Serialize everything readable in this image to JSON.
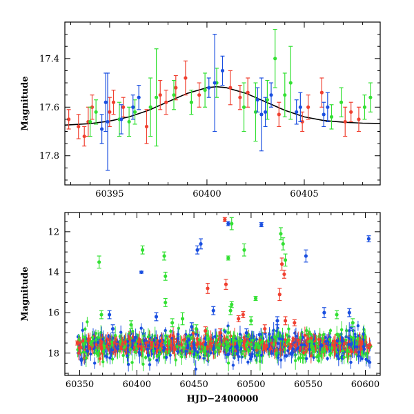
{
  "chart_data": [
    {
      "type": "scatter",
      "title": "",
      "xlabel": "",
      "ylabel": "Magnitude",
      "xlim": [
        60392.7,
        60408.9
      ],
      "ylim": [
        17.92,
        17.25
      ],
      "y_inverted": true,
      "grid": false,
      "x_ticks": [
        60395,
        60400,
        60405
      ],
      "x_tick_labels": [
        "60395",
        "60400",
        "60405"
      ],
      "y_ticks": [
        17.4,
        17.6,
        17.8
      ],
      "y_tick_labels": [
        "17.4",
        "17.6",
        "17.8"
      ],
      "colors": {
        "red": "#f04030",
        "green": "#33e033",
        "blue": "#1a4fe0",
        "model": "#000000"
      },
      "model_curve": {
        "name": "",
        "x": [
          60392.7,
          60394,
          60395,
          60396,
          60397,
          60398,
          60399,
          60400,
          60400.5,
          60401,
          60402,
          60403,
          60404,
          60405,
          60406,
          60407,
          60408,
          60408.9
        ],
        "y": [
          17.674,
          17.668,
          17.657,
          17.64,
          17.613,
          17.578,
          17.543,
          17.52,
          17.516,
          17.52,
          17.543,
          17.578,
          17.613,
          17.64,
          17.655,
          17.662,
          17.666,
          17.667
        ]
      },
      "series": [
        {
          "name": "",
          "color": "red",
          "points": [
            {
              "x": 60392.9,
              "y": 17.65,
              "e": 0.04
            },
            {
              "x": 60393.4,
              "y": 17.68,
              "e": 0.05
            },
            {
              "x": 60393.7,
              "y": 17.72,
              "e": 0.04
            },
            {
              "x": 60393.9,
              "y": 17.66,
              "e": 0.06
            },
            {
              "x": 60394.1,
              "y": 17.6,
              "e": 0.05
            },
            {
              "x": 60395.0,
              "y": 17.62,
              "e": 0.06
            },
            {
              "x": 60395.2,
              "y": 17.58,
              "e": 0.05
            },
            {
              "x": 60395.7,
              "y": 17.6,
              "e": 0.04
            },
            {
              "x": 60396.9,
              "y": 17.68,
              "e": 0.07
            },
            {
              "x": 60397.6,
              "y": 17.55,
              "e": 0.06
            },
            {
              "x": 60397.9,
              "y": 17.58,
              "e": 0.05
            },
            {
              "x": 60398.4,
              "y": 17.52,
              "e": 0.05
            },
            {
              "x": 60398.9,
              "y": 17.48,
              "e": 0.07
            },
            {
              "x": 60399.6,
              "y": 17.55,
              "e": 0.05
            },
            {
              "x": 60401.2,
              "y": 17.52,
              "e": 0.07
            },
            {
              "x": 60401.7,
              "y": 17.56,
              "e": 0.05
            },
            {
              "x": 60402.1,
              "y": 17.54,
              "e": 0.06
            },
            {
              "x": 60403.7,
              "y": 17.63,
              "e": 0.05
            },
            {
              "x": 60404.9,
              "y": 17.66,
              "e": 0.04
            },
            {
              "x": 60405.2,
              "y": 17.6,
              "e": 0.05
            },
            {
              "x": 60405.9,
              "y": 17.54,
              "e": 0.06
            },
            {
              "x": 60407.1,
              "y": 17.66,
              "e": 0.06
            },
            {
              "x": 60407.4,
              "y": 17.62,
              "e": 0.04
            },
            {
              "x": 60407.8,
              "y": 17.65,
              "e": 0.05
            }
          ]
        },
        {
          "name": "",
          "color": "green",
          "points": [
            {
              "x": 60394.0,
              "y": 17.66,
              "e": 0.06
            },
            {
              "x": 60394.3,
              "y": 17.62,
              "e": 0.05
            },
            {
              "x": 60395.5,
              "y": 17.65,
              "e": 0.07
            },
            {
              "x": 60396.0,
              "y": 17.66,
              "e": 0.06
            },
            {
              "x": 60396.3,
              "y": 17.62,
              "e": 0.05
            },
            {
              "x": 60397.1,
              "y": 17.6,
              "e": 0.12
            },
            {
              "x": 60397.4,
              "y": 17.56,
              "e": 0.2
            },
            {
              "x": 60398.3,
              "y": 17.55,
              "e": 0.06
            },
            {
              "x": 60399.2,
              "y": 17.58,
              "e": 0.05
            },
            {
              "x": 60399.9,
              "y": 17.53,
              "e": 0.07
            },
            {
              "x": 60400.5,
              "y": 17.5,
              "e": 0.06
            },
            {
              "x": 60401.9,
              "y": 17.6,
              "e": 0.1
            },
            {
              "x": 60402.5,
              "y": 17.62,
              "e": 0.12
            },
            {
              "x": 60403.1,
              "y": 17.57,
              "e": 0.08
            },
            {
              "x": 60403.5,
              "y": 17.4,
              "e": 0.12
            },
            {
              "x": 60404.0,
              "y": 17.55,
              "e": 0.09
            },
            {
              "x": 60404.3,
              "y": 17.5,
              "e": 0.15
            },
            {
              "x": 60406.4,
              "y": 17.64,
              "e": 0.05
            },
            {
              "x": 60406.9,
              "y": 17.58,
              "e": 0.06
            },
            {
              "x": 60408.1,
              "y": 17.6,
              "e": 0.05
            },
            {
              "x": 60408.4,
              "y": 17.56,
              "e": 0.06
            }
          ]
        },
        {
          "name": "",
          "color": "blue",
          "points": [
            {
              "x": 60394.6,
              "y": 17.69,
              "e": 0.06
            },
            {
              "x": 60394.8,
              "y": 17.58,
              "e": 0.12
            },
            {
              "x": 60394.9,
              "y": 17.66,
              "e": 0.2
            },
            {
              "x": 60395.6,
              "y": 17.65,
              "e": 0.06
            },
            {
              "x": 60396.2,
              "y": 17.6,
              "e": 0.05
            },
            {
              "x": 60396.5,
              "y": 17.56,
              "e": 0.05
            },
            {
              "x": 60400.1,
              "y": 17.52,
              "e": 0.04
            },
            {
              "x": 60400.4,
              "y": 17.5,
              "e": 0.2
            },
            {
              "x": 60400.8,
              "y": 17.45,
              "e": 0.06
            },
            {
              "x": 60402.6,
              "y": 17.57,
              "e": 0.05
            },
            {
              "x": 60402.8,
              "y": 17.63,
              "e": 0.15
            },
            {
              "x": 60403.0,
              "y": 17.62,
              "e": 0.06
            },
            {
              "x": 60403.3,
              "y": 17.55,
              "e": 0.05
            },
            {
              "x": 60404.6,
              "y": 17.62,
              "e": 0.05
            },
            {
              "x": 60404.8,
              "y": 17.6,
              "e": 0.06
            },
            {
              "x": 60406.0,
              "y": 17.63,
              "e": 0.05
            },
            {
              "x": 60406.2,
              "y": 17.6,
              "e": 0.06
            }
          ]
        }
      ]
    },
    {
      "type": "scatter",
      "title": "",
      "xlabel": "HJD−2400000",
      "ylabel": "Magnitude",
      "xlim": [
        60337,
        60613
      ],
      "ylim": [
        19.1,
        11.05
      ],
      "y_inverted": true,
      "grid": false,
      "x_ticks": [
        60350,
        60400,
        60450,
        60500,
        60550,
        60600
      ],
      "x_tick_labels": [
        "60350",
        "60400",
        "60450",
        "60500",
        "60550",
        "60600"
      ],
      "y_ticks": [
        12,
        14,
        16,
        18
      ],
      "y_tick_labels": [
        "12",
        "14",
        "16",
        "18"
      ],
      "colors": {
        "red": "#f04030",
        "green": "#33e033",
        "blue": "#1a4fe0"
      },
      "baseline": {
        "x_start": 60348,
        "x_end": 60605,
        "y": 17.62,
        "scatter": 0.35
      },
      "series": [
        {
          "name": "",
          "color": "red",
          "points": [
            {
              "x": 60348,
              "y": 17.5,
              "e": 0.1
            },
            {
              "x": 60477,
              "y": 11.4,
              "e": 0.1
            },
            {
              "x": 60478,
              "y": 14.6,
              "e": 0.25
            },
            {
              "x": 60462,
              "y": 14.8,
              "e": 0.25
            },
            {
              "x": 60527,
              "y": 13.6,
              "e": 0.3
            },
            {
              "x": 60529,
              "y": 14.1,
              "e": 0.2
            },
            {
              "x": 60525,
              "y": 15.1,
              "e": 0.3
            },
            {
              "x": 60530,
              "y": 16.4,
              "e": 0.2
            },
            {
              "x": 60493,
              "y": 16.1,
              "e": 0.15
            },
            {
              "x": 60538,
              "y": 16.5,
              "e": 0.15
            },
            {
              "x": 60460,
              "y": 16.9,
              "e": 0.2
            },
            {
              "x": 60473,
              "y": 17.0,
              "e": 0.2
            },
            {
              "x": 60512,
              "y": 16.8,
              "e": 0.2
            },
            {
              "x": 60489,
              "y": 16.3,
              "e": 0.15
            }
          ]
        },
        {
          "name": "",
          "color": "green",
          "points": [
            {
              "x": 60367,
              "y": 13.5,
              "e": 0.3
            },
            {
              "x": 60405,
              "y": 12.9,
              "e": 0.2
            },
            {
              "x": 60424,
              "y": 13.2,
              "e": 0.2
            },
            {
              "x": 60425,
              "y": 14.2,
              "e": 0.2
            },
            {
              "x": 60425,
              "y": 15.5,
              "e": 0.2
            },
            {
              "x": 60483,
              "y": 11.6,
              "e": 0.3
            },
            {
              "x": 60494,
              "y": 12.9,
              "e": 0.3
            },
            {
              "x": 60480,
              "y": 13.3,
              "e": 0.1
            },
            {
              "x": 60528,
              "y": 12.6,
              "e": 0.3
            },
            {
              "x": 60526,
              "y": 12.1,
              "e": 0.3
            },
            {
              "x": 60530,
              "y": 13.4,
              "e": 0.3
            },
            {
              "x": 60504,
              "y": 15.3,
              "e": 0.1
            },
            {
              "x": 60483,
              "y": 15.6,
              "e": 0.15
            },
            {
              "x": 60482,
              "y": 15.9,
              "e": 0.2
            },
            {
              "x": 60369,
              "y": 16.1,
              "e": 0.2
            },
            {
              "x": 60440,
              "y": 16.3,
              "e": 0.3
            },
            {
              "x": 60452,
              "y": 16.8,
              "e": 0.2
            },
            {
              "x": 60575,
              "y": 16.1,
              "e": 0.2
            },
            {
              "x": 60589,
              "y": 16.5,
              "e": 0.2
            },
            {
              "x": 60500,
              "y": 16.4,
              "e": 0.2
            },
            {
              "x": 60395,
              "y": 16.6,
              "e": 0.2
            },
            {
              "x": 60431,
              "y": 16.5,
              "e": 0.2
            }
          ]
        },
        {
          "name": "",
          "color": "blue",
          "points": [
            {
              "x": 60480,
              "y": 11.6,
              "e": 0.1
            },
            {
              "x": 60509,
              "y": 11.65,
              "e": 0.1
            },
            {
              "x": 60603,
              "y": 12.35,
              "e": 0.15
            },
            {
              "x": 60456,
              "y": 12.6,
              "e": 0.25
            },
            {
              "x": 60453,
              "y": 12.9,
              "e": 0.2
            },
            {
              "x": 60548,
              "y": 13.2,
              "e": 0.3
            },
            {
              "x": 60404,
              "y": 14.0,
              "e": 0.05
            },
            {
              "x": 60467,
              "y": 15.9,
              "e": 0.2
            },
            {
              "x": 60376,
              "y": 16.1,
              "e": 0.2
            },
            {
              "x": 60417,
              "y": 16.2,
              "e": 0.2
            },
            {
              "x": 60564,
              "y": 16.0,
              "e": 0.25
            },
            {
              "x": 60586,
              "y": 16.0,
              "e": 0.2
            },
            {
              "x": 60523,
              "y": 16.4,
              "e": 0.2
            },
            {
              "x": 60448,
              "y": 16.7,
              "e": 0.2
            },
            {
              "x": 60496,
              "y": 17.0,
              "e": 0.2
            },
            {
              "x": 60379,
              "y": 16.8,
              "e": 0.2
            }
          ]
        }
      ]
    }
  ]
}
